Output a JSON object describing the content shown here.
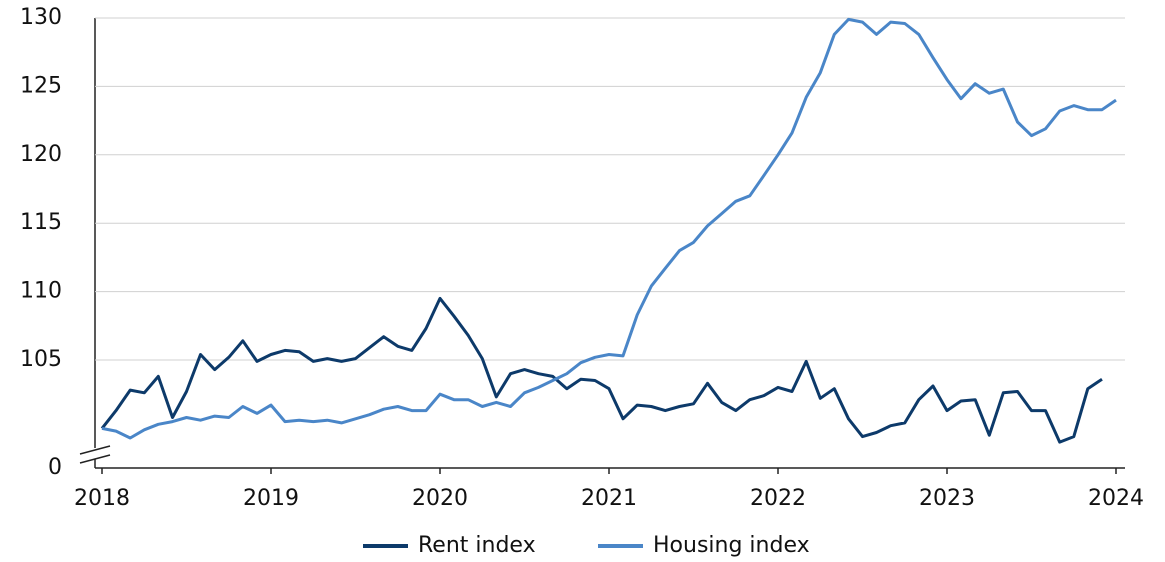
{
  "chart_data": {
    "type": "line",
    "x": [
      2018,
      2018.083,
      2018.167,
      2018.25,
      2018.333,
      2018.417,
      2018.5,
      2018.583,
      2018.667,
      2018.75,
      2018.833,
      2018.917,
      2019,
      2019.083,
      2019.167,
      2019.25,
      2019.333,
      2019.417,
      2019.5,
      2019.583,
      2019.667,
      2019.75,
      2019.833,
      2019.917,
      2020,
      2020.083,
      2020.167,
      2020.25,
      2020.333,
      2020.417,
      2020.5,
      2020.583,
      2020.667,
      2020.75,
      2020.833,
      2020.917,
      2021,
      2021.083,
      2021.167,
      2021.25,
      2021.333,
      2021.417,
      2021.5,
      2021.583,
      2021.667,
      2021.75,
      2021.833,
      2021.917,
      2022,
      2022.083,
      2022.167,
      2022.25,
      2022.333,
      2022.417,
      2022.5,
      2022.583,
      2022.667,
      2022.75,
      2022.833,
      2022.917,
      2023,
      2023.083,
      2023.167,
      2023.25,
      2023.333,
      2023.417,
      2023.5,
      2023.583,
      2023.667,
      2023.75,
      2023.833,
      2023.917,
      2024
    ],
    "series": [
      {
        "name": "Rent index",
        "color": "#0d3a6a",
        "values": [
          100.0,
          101.3,
          102.8,
          102.6,
          103.8,
          100.8,
          102.7,
          105.4,
          104.3,
          105.2,
          106.4,
          104.9,
          105.4,
          105.7,
          105.6,
          104.9,
          105.1,
          104.9,
          105.1,
          105.9,
          106.7,
          106.0,
          105.7,
          107.3,
          109.5,
          108.2,
          106.8,
          105.1,
          102.3,
          104.0,
          104.3,
          104.0,
          103.8,
          102.9,
          103.6,
          103.5,
          102.9,
          100.7,
          101.7,
          101.6,
          101.3,
          101.6,
          101.8,
          103.3,
          101.9,
          101.3,
          102.1,
          102.4,
          103.0,
          102.7,
          104.9,
          102.2,
          102.9,
          100.7,
          99.4,
          99.7,
          100.2,
          100.4,
          102.1,
          103.1,
          101.3,
          102.0,
          102.1,
          99.5,
          102.6,
          102.7,
          101.3,
          101.3,
          99.0,
          99.4,
          102.9,
          103.6,
          null
        ]
      },
      {
        "name": "Housing index",
        "color": "#4a86c8",
        "values": [
          100.0,
          99.8,
          99.3,
          99.9,
          100.3,
          100.5,
          100.8,
          100.6,
          100.9,
          100.8,
          101.6,
          101.1,
          101.7,
          100.5,
          100.6,
          100.5,
          100.6,
          100.4,
          100.7,
          101.0,
          101.4,
          101.6,
          101.3,
          101.3,
          102.5,
          102.1,
          102.1,
          101.6,
          101.9,
          101.6,
          102.6,
          103.0,
          103.5,
          104.0,
          104.8,
          105.2,
          105.4,
          105.3,
          108.3,
          110.4,
          111.7,
          113.0,
          113.6,
          114.8,
          115.7,
          116.6,
          117.0,
          118.5,
          120.0,
          121.6,
          124.2,
          126.0,
          128.8,
          129.9,
          129.7,
          128.8,
          129.7,
          129.6,
          128.8,
          127.1,
          125.5,
          124.1,
          125.2,
          124.5,
          124.8,
          122.4,
          121.4,
          121.9,
          123.2,
          123.6,
          123.3,
          123.3,
          124.0
        ]
      }
    ],
    "xlim": [
      2018,
      2024
    ],
    "xticks": [
      2018,
      2019,
      2020,
      2021,
      2022,
      2023,
      2024
    ],
    "ylim": [
      0,
      130
    ],
    "yticks": [
      0,
      105,
      110,
      115,
      120,
      125,
      130
    ],
    "grid": true,
    "legend": "bottom"
  }
}
